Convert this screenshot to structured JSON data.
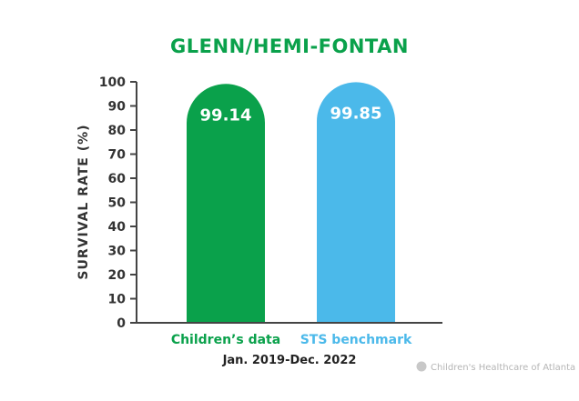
{
  "chart_data": {
    "type": "bar",
    "title": "GLENN/HEMI-FONTAN",
    "ylabel": "SURVIVAL RATE (%)",
    "xlabel": "Jan. 2019-Dec. 2022",
    "categories": [
      "Children’s data",
      "STS benchmark"
    ],
    "values": [
      99.14,
      99.85
    ],
    "data_labels": [
      "99.14",
      "99.85"
    ],
    "colors": [
      "#0aa14b",
      "#4bb9ea"
    ],
    "ylim": [
      0,
      100
    ],
    "yticks": [
      0,
      10,
      20,
      30,
      40,
      50,
      60,
      70,
      80,
      90,
      100
    ],
    "grid": false,
    "legend": "none"
  },
  "footer": {
    "credit": "Children's Healthcare of Atlanta",
    "logo_icon": "childrens-healthcare-logo-icon"
  }
}
